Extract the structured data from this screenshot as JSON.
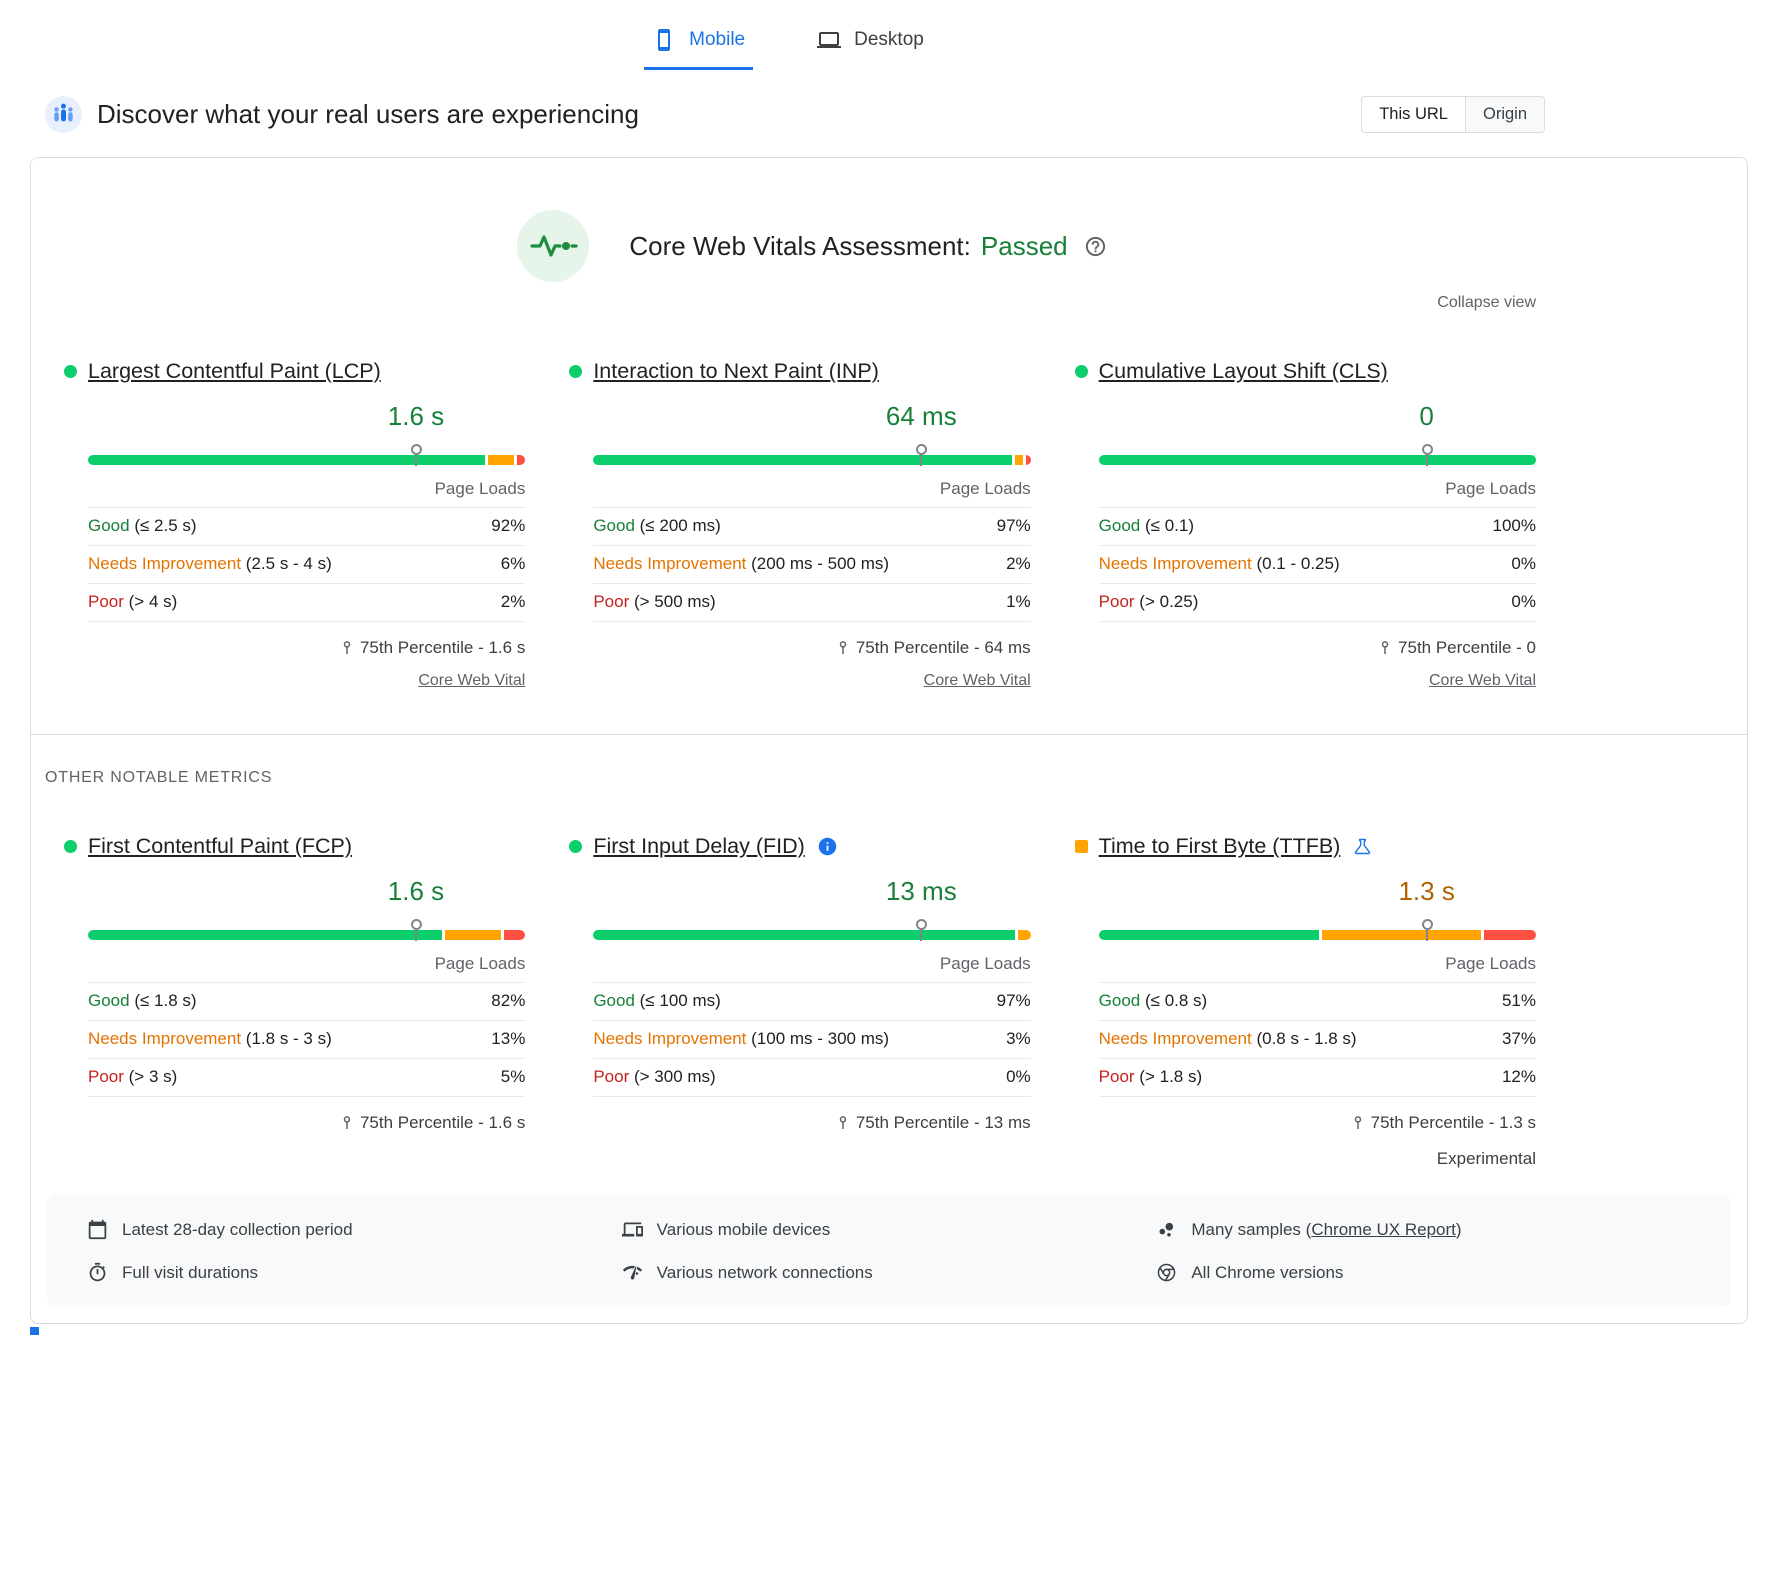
{
  "tabs": [
    {
      "label": "Mobile",
      "icon": "mobile-icon",
      "active": true
    },
    {
      "label": "Desktop",
      "icon": "desktop-icon",
      "active": false
    }
  ],
  "header": {
    "title": "Discover what your real users are experiencing",
    "icon": "experience-icon",
    "scope_toggle": [
      {
        "label": "This URL",
        "active": true
      },
      {
        "label": "Origin",
        "active": false
      }
    ]
  },
  "assessment": {
    "icon": "pulse-icon",
    "label": "Core Web Vitals Assessment:",
    "status": "Passed",
    "status_color": "#188038",
    "help_icon": "help-icon"
  },
  "collapse_label": "Collapse view",
  "other_metrics_label": "OTHER NOTABLE METRICS",
  "colors": {
    "good_bar": "#0cce6b",
    "ni_bar": "#ffa400",
    "poor_bar": "#ff4e42",
    "good_text": "#188038",
    "ni_text": "#e37400",
    "poor_text": "#c5221f",
    "accent_blue": "#1a73e8"
  },
  "core_metrics": [
    {
      "id": "lcp",
      "name": "Largest Contentful Paint (LCP)",
      "indicator": "good",
      "indicator_shape": "circle",
      "value": "1.6 s",
      "value_color": "#188038",
      "bar": {
        "good": 92,
        "ni": 6,
        "poor": 2,
        "marker_pct": 75
      },
      "page_loads_label": "Page Loads",
      "rows": [
        {
          "type": "good",
          "label": "Good",
          "range": "(≤ 2.5 s)",
          "value": "92%"
        },
        {
          "type": "ni",
          "label": "Needs Improvement",
          "range": "(2.5 s - 4 s)",
          "value": "6%"
        },
        {
          "type": "poor",
          "label": "Poor",
          "range": "(> 4 s)",
          "value": "2%"
        }
      ],
      "percentile": "75th Percentile - 1.6 s",
      "link": "Core Web Vital"
    },
    {
      "id": "inp",
      "name": "Interaction to Next Paint (INP)",
      "indicator": "good",
      "indicator_shape": "circle",
      "value": "64 ms",
      "value_color": "#188038",
      "bar": {
        "good": 97,
        "ni": 2,
        "poor": 1,
        "marker_pct": 75
      },
      "page_loads_label": "Page Loads",
      "rows": [
        {
          "type": "good",
          "label": "Good",
          "range": "(≤ 200 ms)",
          "value": "97%"
        },
        {
          "type": "ni",
          "label": "Needs Improvement",
          "range": "(200 ms - 500 ms)",
          "value": "2%"
        },
        {
          "type": "poor",
          "label": "Poor",
          "range": "(> 500 ms)",
          "value": "1%"
        }
      ],
      "percentile": "75th Percentile - 64 ms",
      "link": "Core Web Vital"
    },
    {
      "id": "cls",
      "name": "Cumulative Layout Shift (CLS)",
      "indicator": "good",
      "indicator_shape": "circle",
      "value": "0",
      "value_color": "#188038",
      "bar": {
        "good": 100,
        "ni": 0,
        "poor": 0,
        "marker_pct": 75
      },
      "page_loads_label": "Page Loads",
      "rows": [
        {
          "type": "good",
          "label": "Good",
          "range": "(≤ 0.1)",
          "value": "100%"
        },
        {
          "type": "ni",
          "label": "Needs Improvement",
          "range": "(0.1 - 0.25)",
          "value": "0%"
        },
        {
          "type": "poor",
          "label": "Poor",
          "range": "(> 0.25)",
          "value": "0%"
        }
      ],
      "percentile": "75th Percentile - 0",
      "link": "Core Web Vital"
    }
  ],
  "other_metrics": [
    {
      "id": "fcp",
      "name": "First Contentful Paint (FCP)",
      "indicator": "good",
      "indicator_shape": "circle",
      "value": "1.6 s",
      "value_color": "#188038",
      "bar": {
        "good": 82,
        "ni": 13,
        "poor": 5,
        "marker_pct": 75
      },
      "page_loads_label": "Page Loads",
      "rows": [
        {
          "type": "good",
          "label": "Good",
          "range": "(≤ 1.8 s)",
          "value": "82%"
        },
        {
          "type": "ni",
          "label": "Needs Improvement",
          "range": "(1.8 s - 3 s)",
          "value": "13%"
        },
        {
          "type": "poor",
          "label": "Poor",
          "range": "(> 3 s)",
          "value": "5%"
        }
      ],
      "percentile": "75th Percentile - 1.6 s"
    },
    {
      "id": "fid",
      "name": "First Input Delay (FID)",
      "indicator": "good",
      "indicator_shape": "circle",
      "extra_icon": "info-icon",
      "value": "13 ms",
      "value_color": "#188038",
      "bar": {
        "good": 97,
        "ni": 3,
        "poor": 0,
        "marker_pct": 75
      },
      "page_loads_label": "Page Loads",
      "rows": [
        {
          "type": "good",
          "label": "Good",
          "range": "(≤ 100 ms)",
          "value": "97%"
        },
        {
          "type": "ni",
          "label": "Needs Improvement",
          "range": "(100 ms - 300 ms)",
          "value": "3%"
        },
        {
          "type": "poor",
          "label": "Poor",
          "range": "(> 300 ms)",
          "value": "0%"
        }
      ],
      "percentile": "75th Percentile - 13 ms"
    },
    {
      "id": "ttfb",
      "name": "Time to First Byte (TTFB)",
      "indicator": "ni",
      "indicator_shape": "square",
      "extra_icon": "flask-icon",
      "value": "1.3 s",
      "value_color": "#b06000",
      "bar": {
        "good": 51,
        "ni": 37,
        "poor": 12,
        "marker_pct": 75
      },
      "page_loads_label": "Page Loads",
      "rows": [
        {
          "type": "good",
          "label": "Good",
          "range": "(≤ 0.8 s)",
          "value": "51%"
        },
        {
          "type": "ni",
          "label": "Needs Improvement",
          "range": "(0.8 s - 1.8 s)",
          "value": "37%"
        },
        {
          "type": "poor",
          "label": "Poor",
          "range": "(> 1.8 s)",
          "value": "12%"
        }
      ],
      "percentile": "75th Percentile - 1.3 s",
      "experimental": "Experimental"
    }
  ],
  "footer": {
    "items": [
      {
        "icon": "calendar-icon",
        "text": "Latest 28-day collection period"
      },
      {
        "icon": "devices-icon",
        "text": "Various mobile devices"
      },
      {
        "icon": "samples-icon",
        "text": "Many samples (",
        "link": "Chrome UX Report",
        "suffix": ")"
      },
      {
        "icon": "timer-icon",
        "text": "Full visit durations"
      },
      {
        "icon": "network-icon",
        "text": "Various network connections"
      },
      {
        "icon": "chrome-icon",
        "text": "All Chrome versions"
      }
    ]
  }
}
